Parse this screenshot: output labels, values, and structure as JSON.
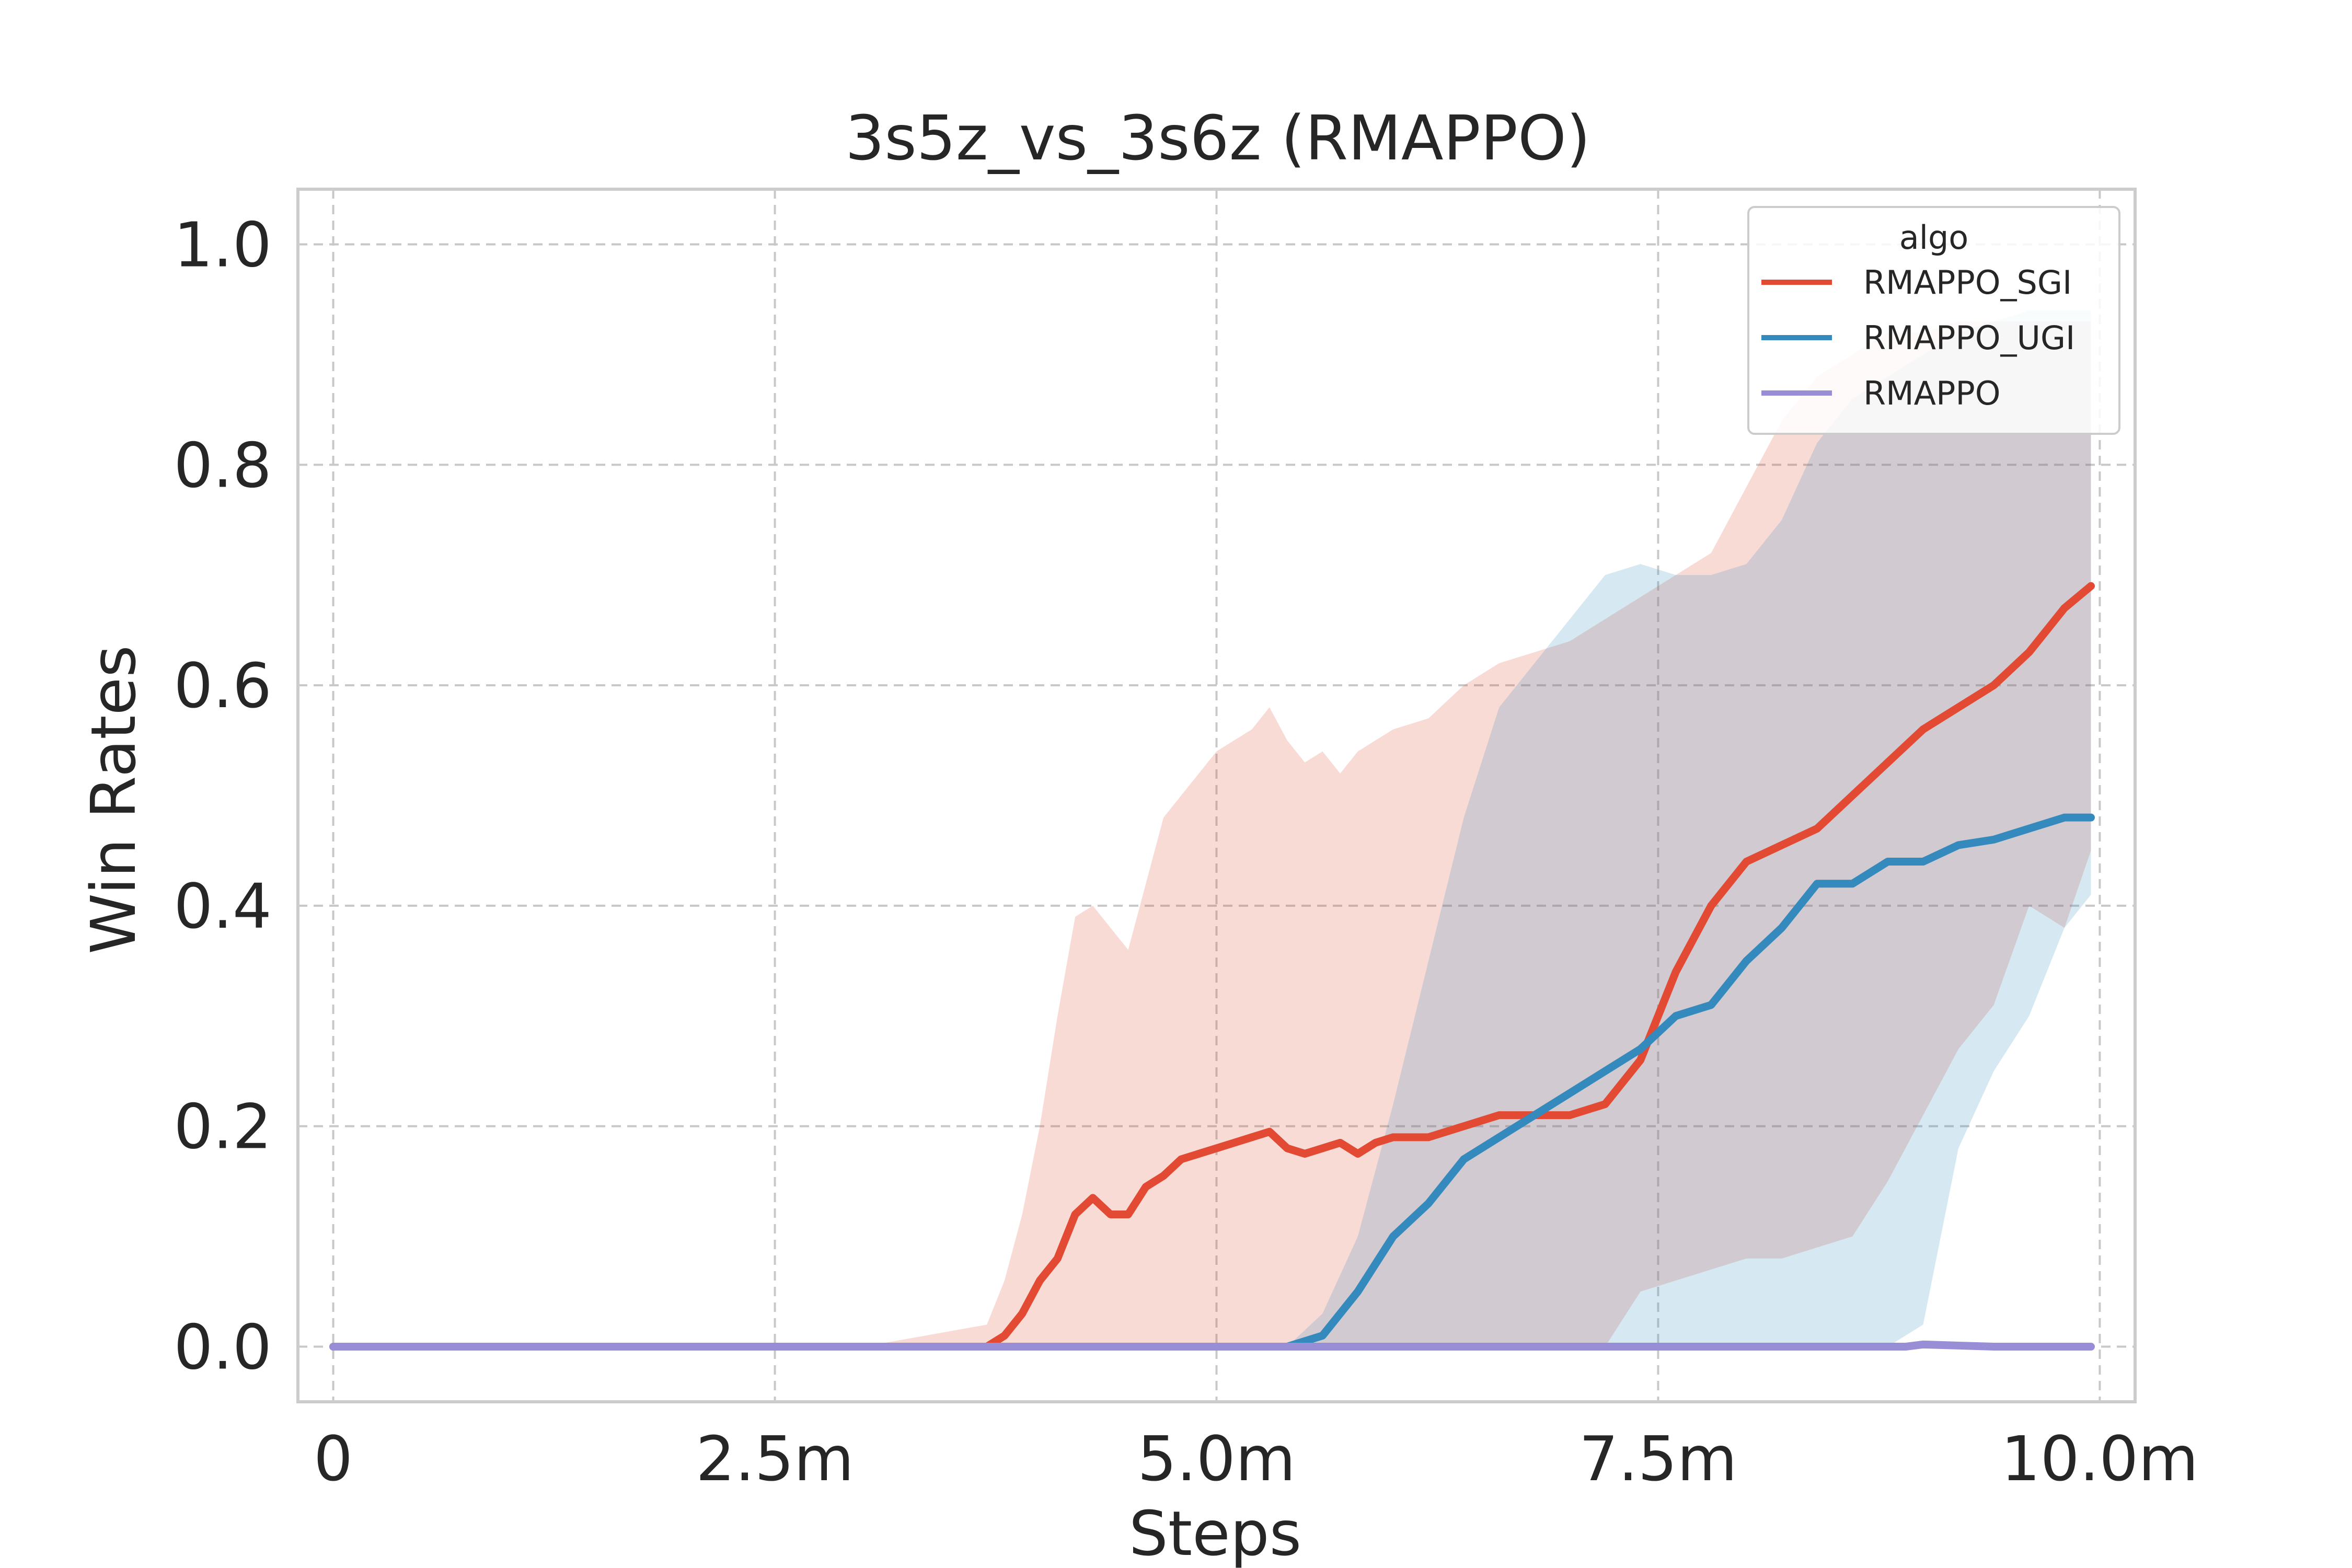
{
  "chart_data": {
    "type": "line",
    "title": "3s5z_vs_3s6z (RMAPPO)",
    "xlabel": "Steps",
    "ylabel": "Win Rates",
    "xlim": [
      -0.2,
      10.2
    ],
    "ylim": [
      -0.05,
      1.05
    ],
    "xticks": [
      0,
      2.5,
      5.0,
      7.5,
      10.0
    ],
    "xtick_labels": [
      "0",
      "2.5m",
      "5.0m",
      "7.5m",
      "10.0m"
    ],
    "yticks": [
      0.0,
      0.2,
      0.4,
      0.6,
      0.8,
      1.0
    ],
    "ytick_labels": [
      "0.0",
      "0.2",
      "0.4",
      "0.6",
      "0.8",
      "1.0"
    ],
    "grid": true,
    "legend": {
      "title": "algo",
      "position": "top-right"
    },
    "series": [
      {
        "name": "RMAPPO_SGI",
        "color": "#e24a33",
        "x": [
          0,
          1.0,
          2.0,
          3.0,
          3.7,
          3.8,
          3.9,
          4.0,
          4.1,
          4.2,
          4.3,
          4.4,
          4.5,
          4.6,
          4.7,
          4.8,
          4.9,
          5.0,
          5.1,
          5.2,
          5.3,
          5.4,
          5.5,
          5.6,
          5.7,
          5.8,
          5.9,
          6.0,
          6.2,
          6.4,
          6.6,
          6.8,
          7.0,
          7.2,
          7.4,
          7.6,
          7.8,
          8.0,
          8.2,
          8.4,
          8.6,
          8.8,
          9.0,
          9.2,
          9.4,
          9.6,
          9.8,
          9.95
        ],
        "y": [
          0.0,
          0.0,
          0.0,
          0.0,
          0.0,
          0.01,
          0.03,
          0.06,
          0.08,
          0.12,
          0.135,
          0.12,
          0.12,
          0.145,
          0.155,
          0.17,
          0.175,
          0.18,
          0.185,
          0.19,
          0.195,
          0.18,
          0.175,
          0.18,
          0.185,
          0.175,
          0.185,
          0.19,
          0.19,
          0.2,
          0.21,
          0.21,
          0.21,
          0.22,
          0.26,
          0.34,
          0.4,
          0.44,
          0.455,
          0.47,
          0.5,
          0.53,
          0.56,
          0.58,
          0.6,
          0.63,
          0.67,
          0.69
        ],
        "lower": [
          0.0,
          0.0,
          0.0,
          0.0,
          0.0,
          0.0,
          0.0,
          0.0,
          0.0,
          0.0,
          0.0,
          0.0,
          0.0,
          0.0,
          0.0,
          0.0,
          0.0,
          0.0,
          0.0,
          0.0,
          0.0,
          0.0,
          0.0,
          0.0,
          0.0,
          0.0,
          0.0,
          0.0,
          0.0,
          0.0,
          0.0,
          0.0,
          0.0,
          0.0,
          0.05,
          0.06,
          0.07,
          0.08,
          0.08,
          0.09,
          0.1,
          0.15,
          0.21,
          0.27,
          0.31,
          0.4,
          0.38,
          0.45
        ],
        "upper": [
          0.0,
          0.0,
          0.0,
          0.0,
          0.02,
          0.06,
          0.12,
          0.2,
          0.3,
          0.39,
          0.4,
          0.38,
          0.36,
          0.42,
          0.48,
          0.5,
          0.52,
          0.54,
          0.55,
          0.56,
          0.58,
          0.55,
          0.53,
          0.54,
          0.52,
          0.54,
          0.55,
          0.56,
          0.57,
          0.6,
          0.62,
          0.63,
          0.64,
          0.66,
          0.68,
          0.7,
          0.72,
          0.78,
          0.84,
          0.88,
          0.9,
          0.92,
          0.92,
          0.93,
          0.93,
          0.93,
          0.93,
          0.93
        ]
      },
      {
        "name": "RMAPPO_UGI",
        "color": "#348abd",
        "x": [
          0,
          1.0,
          2.0,
          3.0,
          4.0,
          5.0,
          5.4,
          5.6,
          5.8,
          6.0,
          6.2,
          6.4,
          6.6,
          6.8,
          7.0,
          7.2,
          7.4,
          7.6,
          7.8,
          8.0,
          8.2,
          8.4,
          8.6,
          8.8,
          9.0,
          9.2,
          9.4,
          9.6,
          9.8,
          9.95
        ],
        "y": [
          0.0,
          0.0,
          0.0,
          0.0,
          0.0,
          0.0,
          0.0,
          0.01,
          0.05,
          0.1,
          0.13,
          0.17,
          0.19,
          0.21,
          0.23,
          0.25,
          0.27,
          0.3,
          0.31,
          0.35,
          0.38,
          0.42,
          0.42,
          0.44,
          0.44,
          0.455,
          0.46,
          0.47,
          0.48,
          0.48
        ],
        "lower": [
          0.0,
          0.0,
          0.0,
          0.0,
          0.0,
          0.0,
          0.0,
          0.0,
          0.0,
          0.0,
          0.0,
          0.0,
          0.0,
          0.0,
          0.0,
          0.0,
          0.0,
          0.0,
          0.0,
          0.0,
          0.0,
          0.0,
          0.0,
          0.0,
          0.02,
          0.18,
          0.25,
          0.3,
          0.38,
          0.41
        ],
        "upper": [
          0.0,
          0.0,
          0.0,
          0.0,
          0.0,
          0.0,
          0.0,
          0.03,
          0.1,
          0.22,
          0.35,
          0.48,
          0.58,
          0.62,
          0.66,
          0.7,
          0.71,
          0.7,
          0.7,
          0.71,
          0.75,
          0.82,
          0.86,
          0.88,
          0.9,
          0.92,
          0.93,
          0.94,
          0.94,
          0.94
        ]
      },
      {
        "name": "RMAPPO",
        "color": "#988ed5",
        "x": [
          0,
          1.0,
          2.0,
          3.0,
          4.0,
          5.0,
          6.0,
          7.0,
          8.0,
          8.9,
          9.0,
          9.2,
          9.4,
          9.6,
          9.8,
          9.95
        ],
        "y": [
          0.0,
          0.0,
          0.0,
          0.0,
          0.0,
          0.0,
          0.0,
          0.0,
          0.0,
          0.0,
          0.002,
          0.001,
          0.0,
          0.0,
          0.0,
          0.0
        ],
        "lower": [
          0.0,
          0.0,
          0.0,
          0.0,
          0.0,
          0.0,
          0.0,
          0.0,
          0.0,
          0.0,
          0.0,
          0.0,
          0.0,
          0.0,
          0.0,
          0.0
        ],
        "upper": [
          0.0,
          0.0,
          0.0,
          0.0,
          0.0,
          0.0,
          0.0,
          0.0,
          0.0,
          0.0,
          0.004,
          0.002,
          0.0,
          0.0,
          0.0,
          0.0
        ]
      }
    ]
  }
}
